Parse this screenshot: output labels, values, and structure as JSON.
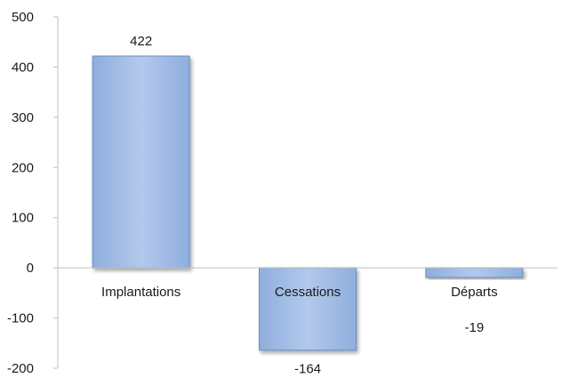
{
  "chart_data": {
    "type": "bar",
    "title": "",
    "xlabel": "",
    "ylabel": "",
    "categories": [
      "Implantations",
      "Cessations",
      "Départs"
    ],
    "values": [
      422,
      -164,
      -19
    ],
    "data_labels": [
      "422",
      "-164",
      "-19"
    ],
    "ylim": [
      -200,
      500
    ],
    "yticks": [
      -200,
      -100,
      0,
      100,
      200,
      300,
      400,
      500
    ],
    "ytick_labels": [
      "-200",
      "-100",
      "0",
      "100",
      "200",
      "300",
      "400",
      "500"
    ],
    "grid": false,
    "legend": "none",
    "colors": {
      "bar_fill": "#9db9e4",
      "bar_fill_light": "#b9cdee",
      "bar_stroke": "#6c8ec8",
      "axis": "#bfbfbf"
    }
  }
}
